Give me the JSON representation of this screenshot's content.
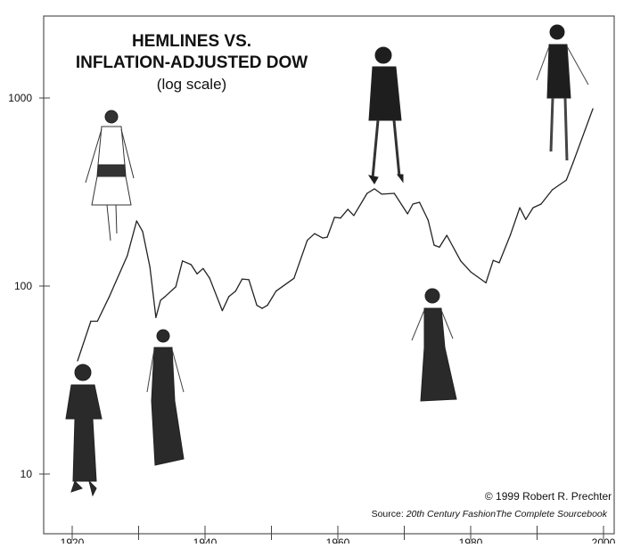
{
  "chart_data": {
    "type": "line",
    "title": "HEMLINES VS.",
    "title_line2": "INFLATION-ADJUSTED DOW",
    "subtitle": "(log scale)",
    "xlabel": "",
    "ylabel": "",
    "y_scale": "log",
    "xlim": [
      1915,
      2003
    ],
    "ylim": [
      6,
      2600
    ],
    "x_ticks": [
      1920,
      1930,
      1940,
      1950,
      1960,
      1970,
      1980,
      1990,
      2000
    ],
    "x_tick_labels": [
      "1920",
      "1940",
      "1960",
      "1980",
      "2000"
    ],
    "y_ticks": [
      10,
      100,
      1000
    ],
    "y_tick_labels": [
      "10",
      "100",
      "1000"
    ],
    "grid": false,
    "line_color": "#222222",
    "series": [
      {
        "x": [
          1920.8,
          1922.8,
          1923.8,
          1925.6,
          1928.3,
          1929.7,
          1930.6,
          1931.7,
          1932.6,
          1933.3,
          1934.0,
          1935.6,
          1936.6,
          1937.9,
          1938.8,
          1939.7,
          1940.7,
          1942.6,
          1943.6,
          1944.6,
          1945.6,
          1946.6,
          1947.8,
          1948.6,
          1949.4,
          1950.7,
          1953.4,
          1955.4,
          1956.5,
          1957.7,
          1958.4,
          1959.5,
          1960.4,
          1961.5,
          1962.4,
          1964.4,
          1965.5,
          1966.6,
          1968.5,
          1970.5,
          1971.3,
          1972.3,
          1973.6,
          1974.5,
          1975.3,
          1976.4,
          1978.5,
          1980.0,
          1982.3,
          1983.4,
          1984.3,
          1986.0,
          1987.4,
          1988.3,
          1989.4,
          1990.6,
          1992.3,
          1994.4,
          1995.4,
          1998.4
        ],
        "y": [
          40,
          65,
          65,
          88,
          145,
          222,
          195,
          126,
          68,
          84,
          88,
          99,
          136,
          130,
          116,
          124,
          110,
          74,
          88,
          94,
          109,
          108,
          79,
          76,
          79,
          94,
          110,
          175,
          190,
          180,
          182,
          232,
          230,
          256,
          237,
          311,
          329,
          308,
          311,
          242,
          273,
          279,
          224,
          165,
          161,
          186,
          136,
          119,
          104,
          137,
          133,
          188,
          261,
          226,
          261,
          273,
          325,
          366,
          451,
          877
        ]
      }
    ],
    "annotations": {
      "copyright": "© 1999 Robert R. Prechter",
      "source_prefix": "Source: ",
      "source_title": "20th Century FashionThe Complete Sourcebook"
    },
    "illustrations": [
      "1920s long dress",
      "1920s drop-waist dress",
      "1930s long gown",
      "1960s mini dress",
      "1970s long gown",
      "1990s mini dress"
    ]
  }
}
